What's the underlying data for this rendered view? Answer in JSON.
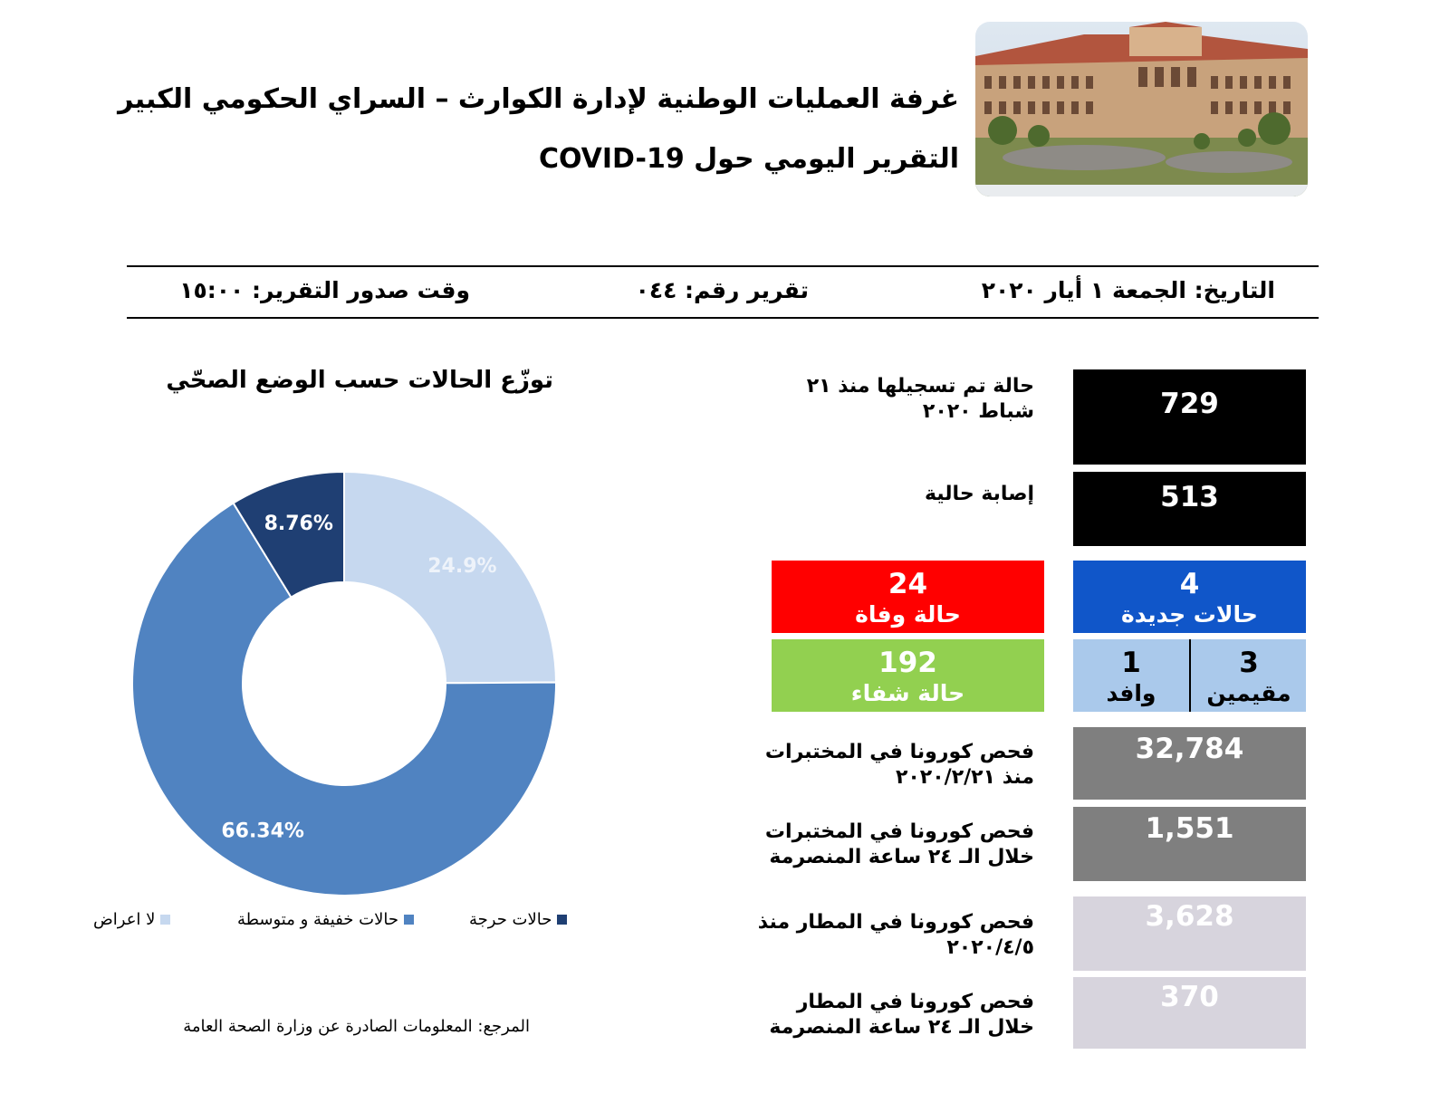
{
  "header": {
    "title_line1": "غرفة العمليات الوطنية لإدارة الكوارث – السراي الحكومي الكبير",
    "title_line2": "التقرير اليومي حول COVID-19",
    "date": "التاريخ: الجمعة ١ أيار ٢٠٢٠",
    "report_number": "تقرير رقم: ٠٤٤",
    "issue_time": "وقت صدور التقرير: ١٥:٠٠"
  },
  "stats": {
    "total_cases": {
      "value": "729",
      "label_line1": "حالة تم تسجيلها منذ ٢١",
      "label_line2": "شباط ٢٠٢٠"
    },
    "current_cases": {
      "value": "513",
      "label": "إصابة حالية"
    },
    "new_cases": {
      "value": "4",
      "label": "حالات جديدة"
    },
    "deaths": {
      "value": "24",
      "label": "حالة وفاة"
    },
    "recovered": {
      "value": "192",
      "label": "حالة شفاء"
    },
    "residents": {
      "value": "3",
      "label": "مقيمين"
    },
    "arrivals": {
      "value": "1",
      "label": "وافد"
    },
    "lab_tests_total": {
      "value": "32,784",
      "label_line1": "فحص كورونا في المختبرات",
      "label_line2": "منذ ٢٠٢٠/٢/٢١"
    },
    "lab_tests_24h": {
      "value": "1,551",
      "label_line1": "فحص كورونا في المختبرات",
      "label_line2": "خلال الـ ٢٤ ساعة المنصرمة"
    },
    "airport_tests_total": {
      "value": "3,628",
      "label_line1": "فحص كورونا في المطار منذ",
      "label_line2": "٢٠٢٠/٤/٥"
    },
    "airport_tests_24h": {
      "value": "370",
      "label_line1": "فحص كورونا في المطار",
      "label_line2": "خلال الـ ٢٤ ساعة المنصرمة"
    }
  },
  "chart_data": {
    "type": "pie",
    "title": "توزّع الحالات حسب الوضع الصحّي",
    "slices": [
      {
        "name": "لا اعراض",
        "value": 24.9,
        "label": "24.9%",
        "color": "#c6d8ef"
      },
      {
        "name": "حالات خفيفة و متوسطة",
        "value": 66.34,
        "label": "66.34%",
        "color": "#5083c1"
      },
      {
        "name": "حالات حرجة",
        "value": 8.76,
        "label": "8.76%",
        "color": "#1f3f73"
      }
    ],
    "legend_position": "bottom"
  },
  "footer": {
    "source": "المرجع: المعلومات الصادرة عن وزارة الصحة العامة"
  },
  "colors": {
    "deaths": "#ff0000",
    "new": "#1056c9",
    "recovered": "#92d050",
    "lab": "#7f7f7f",
    "airport": "#d7d4dd"
  }
}
